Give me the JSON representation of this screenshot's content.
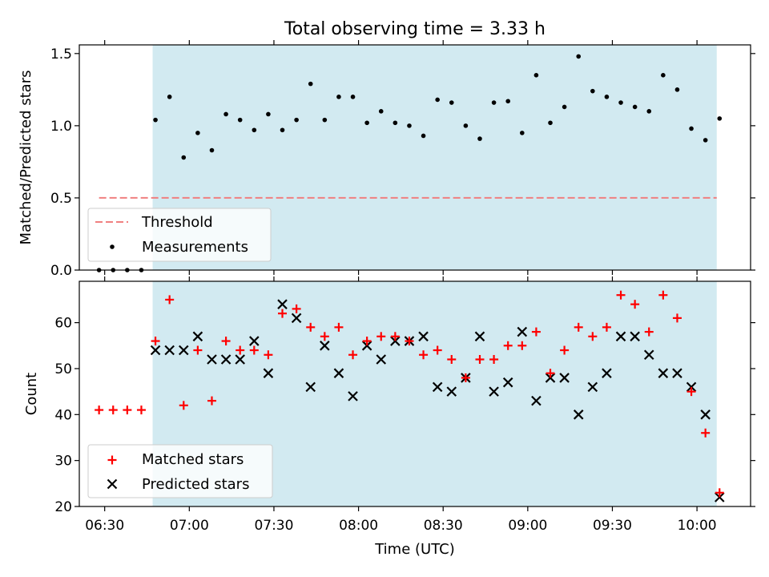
{
  "chart_data": [
    {
      "type": "scatter",
      "title": "Total observing time = 3.33 h",
      "ylabel": "Matched/Predicted stars",
      "xlabel": "",
      "xlim": [
        "06:21",
        "10:19"
      ],
      "ylim": [
        0,
        1.56
      ],
      "yticks": [
        0.0,
        0.5,
        1.0,
        1.5
      ],
      "ytick_labels": [
        "0.0",
        "0.5",
        "1.0",
        "1.5"
      ],
      "shaded_region": {
        "from": "06:47",
        "to": "10:07",
        "color": "#add8e6"
      },
      "legend_position": "lower-left",
      "threshold": {
        "name": "Threshold",
        "value": 0.5,
        "from": "06:28",
        "to": "10:07",
        "color": "#f08080"
      },
      "series": [
        {
          "name": "Measurements",
          "marker": "dot",
          "color": "#000000",
          "x": [
            "06:28",
            "06:33",
            "06:38",
            "06:43",
            "06:48",
            "06:53",
            "06:58",
            "07:03",
            "07:08",
            "07:13",
            "07:18",
            "07:23",
            "07:28",
            "07:33",
            "07:38",
            "07:43",
            "07:48",
            "07:53",
            "07:58",
            "08:03",
            "08:08",
            "08:13",
            "08:18",
            "08:23",
            "08:28",
            "08:33",
            "08:38",
            "08:43",
            "08:48",
            "08:53",
            "08:58",
            "09:03",
            "09:08",
            "09:13",
            "09:18",
            "09:23",
            "09:28",
            "09:33",
            "09:38",
            "09:43",
            "09:48",
            "09:53",
            "09:58",
            "10:03",
            "10:08"
          ],
          "y": [
            0,
            0,
            0,
            0,
            1.04,
            1.2,
            0.78,
            0.95,
            0.83,
            1.08,
            1.04,
            0.97,
            1.08,
            0.97,
            1.04,
            1.29,
            1.04,
            1.2,
            1.2,
            1.02,
            1.1,
            1.02,
            1.0,
            0.93,
            1.18,
            1.16,
            1.0,
            0.91,
            1.16,
            1.17,
            0.95,
            1.35,
            1.02,
            1.13,
            1.48,
            1.24,
            1.2,
            1.16,
            1.13,
            1.1,
            1.35,
            1.25,
            0.98,
            0.9,
            1.05
          ]
        }
      ]
    },
    {
      "type": "scatter",
      "title": "",
      "xlabel": "Time (UTC)",
      "ylabel": "Count",
      "xlim": [
        "06:21",
        "10:19"
      ],
      "ylim": [
        20,
        69
      ],
      "xticks": [
        "06:30",
        "07:00",
        "07:30",
        "08:00",
        "08:30",
        "09:00",
        "09:30",
        "10:00"
      ],
      "yticks": [
        20,
        30,
        40,
        50,
        60
      ],
      "ytick_labels": [
        "20",
        "30",
        "40",
        "50",
        "60"
      ],
      "shaded_region": {
        "from": "06:47",
        "to": "10:07",
        "color": "#add8e6"
      },
      "legend_position": "lower-left",
      "x": [
        "06:28",
        "06:33",
        "06:38",
        "06:43",
        "06:48",
        "06:53",
        "06:58",
        "07:03",
        "07:08",
        "07:13",
        "07:18",
        "07:23",
        "07:28",
        "07:33",
        "07:38",
        "07:43",
        "07:48",
        "07:53",
        "07:58",
        "08:03",
        "08:08",
        "08:13",
        "08:18",
        "08:23",
        "08:28",
        "08:33",
        "08:38",
        "08:43",
        "08:48",
        "08:53",
        "08:58",
        "09:03",
        "09:08",
        "09:13",
        "09:18",
        "09:23",
        "09:28",
        "09:33",
        "09:38",
        "09:43",
        "09:48",
        "09:53",
        "09:58",
        "10:03",
        "10:08"
      ],
      "series": [
        {
          "name": "Matched stars",
          "marker": "plus",
          "color": "#ff0000",
          "values": [
            41,
            41,
            41,
            41,
            56,
            65,
            42,
            54,
            43,
            56,
            54,
            54,
            53,
            62,
            63,
            59,
            57,
            59,
            53,
            56,
            57,
            57,
            56,
            53,
            54,
            52,
            48,
            52,
            52,
            55,
            55,
            58,
            49,
            54,
            59,
            57,
            59,
            66,
            64,
            58,
            66,
            61,
            45,
            36,
            23
          ]
        },
        {
          "name": "Predicted stars",
          "marker": "x",
          "color": "#000000",
          "values": [
            null,
            null,
            null,
            null,
            54,
            54,
            54,
            57,
            52,
            52,
            52,
            56,
            49,
            64,
            61,
            46,
            55,
            49,
            44,
            55,
            52,
            56,
            56,
            57,
            46,
            45,
            48,
            57,
            45,
            47,
            58,
            43,
            48,
            48,
            40,
            46,
            49,
            57,
            57,
            53,
            49,
            49,
            46,
            40,
            22
          ]
        }
      ]
    }
  ]
}
